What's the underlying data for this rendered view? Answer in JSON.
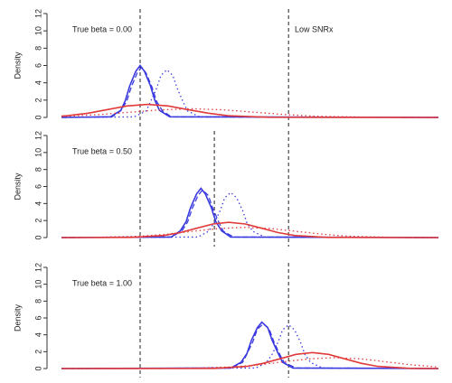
{
  "chart_data": [
    {
      "type": "line",
      "annotation": "True beta = 0.00",
      "note": "Low SNRx",
      "ylabel": "Density",
      "xlim": [
        -0.53,
        2.01
      ],
      "ylim": [
        0,
        12
      ],
      "yticks": [
        0,
        2,
        4,
        6,
        8,
        10,
        12
      ],
      "vlines": [
        0,
        1.0
      ],
      "series": [
        {
          "color": "#3a3ae0",
          "style": "solid",
          "x": [
            -0.53,
            -0.2,
            -0.13,
            -0.1,
            -0.07,
            -0.03,
            0,
            0.03,
            0.07,
            0.1,
            0.13,
            0.2,
            2.01
          ],
          "values": [
            0,
            0.07,
            0.81,
            1.95,
            3.64,
            5.3,
            6,
            5.3,
            3.64,
            1.95,
            0.81,
            0.07,
            0
          ]
        },
        {
          "color": "#3a3ae0",
          "style": "dashed",
          "x": [
            -0.53,
            -0.19,
            -0.13,
            -0.09,
            -0.06,
            -0.02,
            0.01,
            0.04,
            0.08,
            0.11,
            0.15,
            0.21,
            2.01
          ],
          "values": [
            0,
            0.06,
            0.78,
            1.88,
            3.52,
            5.12,
            5.8,
            5.12,
            3.52,
            1.88,
            0.78,
            0.06,
            0
          ]
        },
        {
          "color": "#3a3ae0",
          "style": "dotted",
          "x": [
            -0.53,
            -0.04,
            0.04,
            0.07,
            0.11,
            0.14,
            0.18,
            0.22,
            0.25,
            0.29,
            0.32,
            0.4,
            2.01
          ],
          "values": [
            0,
            0.06,
            0.74,
            1.79,
            3.34,
            4.85,
            5.5,
            4.85,
            3.34,
            1.79,
            0.74,
            0.06,
            0
          ]
        },
        {
          "color": "#e03a3a",
          "style": "solid",
          "x": [
            -0.53,
            -0.49,
            -0.35,
            -0.22,
            -0.09,
            0.05,
            0.19,
            0.32,
            0.46,
            0.59,
            0.86,
            2.01
          ],
          "values": [
            0.15,
            0.2,
            0.49,
            0.91,
            1.32,
            1.5,
            1.32,
            0.91,
            0.49,
            0.2,
            0.02,
            0
          ]
        },
        {
          "color": "#e03a3a",
          "style": "dotted",
          "x": [
            -0.53,
            -0.28,
            -0.07,
            0.14,
            0.35,
            0.56,
            0.77,
            0.98,
            1.19,
            1.61,
            2.01
          ],
          "values": [
            0.11,
            0.32,
            0.61,
            0.88,
            1,
            0.88,
            0.61,
            0.32,
            0.14,
            0.01,
            0
          ]
        }
      ]
    },
    {
      "type": "line",
      "annotation": "True beta = 0.50",
      "ylabel": "Density",
      "xlim": [
        -0.53,
        2.01
      ],
      "ylim": [
        0,
        12
      ],
      "yticks": [
        0,
        2,
        4,
        6,
        8,
        10,
        12
      ],
      "vlines": [
        0,
        0.5,
        1.0
      ],
      "series": [
        {
          "color": "#3a3ae0",
          "style": "solid",
          "x": [
            -0.53,
            0.21,
            0.27,
            0.31,
            0.34,
            0.38,
            0.41,
            0.44,
            0.48,
            0.51,
            0.55,
            0.61,
            2.01
          ],
          "values": [
            0,
            0.06,
            0.78,
            1.88,
            3.52,
            5.12,
            5.8,
            5.12,
            3.52,
            1.88,
            0.78,
            0.06,
            0
          ]
        },
        {
          "color": "#3a3ae0",
          "style": "dashed",
          "x": [
            -0.53,
            0.21,
            0.28,
            0.32,
            0.35,
            0.39,
            0.42,
            0.46,
            0.49,
            0.53,
            0.56,
            0.63,
            2.01
          ],
          "values": [
            0,
            0.06,
            0.76,
            1.82,
            3.4,
            4.94,
            5.6,
            4.94,
            3.4,
            1.82,
            0.76,
            0.06,
            0
          ]
        },
        {
          "color": "#3a3ae0",
          "style": "dotted",
          "x": [
            -0.53,
            0.39,
            0.46,
            0.5,
            0.54,
            0.57,
            0.61,
            0.65,
            0.69,
            0.72,
            0.76,
            0.84,
            2.01
          ],
          "values": [
            0,
            0.06,
            0.72,
            1.72,
            3.21,
            4.68,
            5.3,
            4.68,
            3.21,
            1.72,
            0.72,
            0.06,
            0
          ]
        },
        {
          "color": "#e03a3a",
          "style": "solid",
          "x": [
            -0.53,
            -0.06,
            0.16,
            0.27,
            0.38,
            0.49,
            0.6,
            0.71,
            0.82,
            0.93,
            1.04,
            1.26,
            2.01
          ],
          "values": [
            0,
            0.02,
            0.24,
            0.58,
            1.09,
            1.59,
            1.8,
            1.59,
            1.09,
            0.58,
            0.24,
            0.02,
            0
          ]
        },
        {
          "color": "#e03a3a",
          "style": "dotted",
          "x": [
            -0.53,
            -0.35,
            0.0,
            0.18,
            0.35,
            0.53,
            0.7,
            0.88,
            1.05,
            1.23,
            1.4,
            1.75,
            2.01
          ],
          "values": [
            0,
            0.01,
            0.16,
            0.39,
            0.73,
            1.06,
            1.2,
            1.06,
            0.73,
            0.39,
            0.16,
            0.01,
            0
          ]
        }
      ]
    },
    {
      "type": "line",
      "annotation": "True beta = 1.00",
      "ylabel": "Density",
      "xlim": [
        -0.53,
        2.01
      ],
      "ylim": [
        0,
        12
      ],
      "yticks": [
        0,
        2,
        4,
        6,
        8,
        10,
        12
      ],
      "vlines": [
        0,
        1.0
      ],
      "series": [
        {
          "color": "#3a3ae0",
          "style": "solid",
          "x": [
            -0.53,
            0.61,
            0.68,
            0.72,
            0.75,
            0.79,
            0.82,
            0.86,
            0.89,
            0.93,
            0.96,
            1.03,
            2.01
          ],
          "values": [
            0,
            0.06,
            0.74,
            1.79,
            3.34,
            4.85,
            5.5,
            4.85,
            3.34,
            1.79,
            0.74,
            0.06,
            0
          ]
        },
        {
          "color": "#3a3ae0",
          "style": "dashed",
          "x": [
            -0.53,
            0.61,
            0.69,
            0.72,
            0.76,
            0.79,
            0.83,
            0.87,
            0.9,
            0.94,
            0.97,
            1.05,
            2.01
          ],
          "values": [
            0,
            0.06,
            0.72,
            1.72,
            3.21,
            4.68,
            5.3,
            4.68,
            3.21,
            1.72,
            0.72,
            0.06,
            0
          ]
        },
        {
          "color": "#3a3ae0",
          "style": "dotted",
          "x": [
            -0.53,
            0.78,
            0.85,
            0.89,
            0.93,
            0.96,
            1.0,
            1.04,
            1.08,
            1.11,
            1.15,
            1.23,
            2.01
          ],
          "values": [
            0,
            0.06,
            0.7,
            1.69,
            3.15,
            4.59,
            5.2,
            4.59,
            3.15,
            1.69,
            0.7,
            0.06,
            0
          ]
        },
        {
          "color": "#e03a3a",
          "style": "solid",
          "x": [
            -0.53,
            0.5,
            0.72,
            0.83,
            0.94,
            1.05,
            1.16,
            1.27,
            1.38,
            1.49,
            1.6,
            1.82,
            2.01
          ],
          "values": [
            0,
            0.02,
            0.26,
            0.62,
            1.15,
            1.68,
            1.9,
            1.68,
            1.15,
            0.62,
            0.26,
            0.02,
            0
          ]
        },
        {
          "color": "#e03a3a",
          "style": "dotted",
          "x": [
            -0.53,
            0.26,
            0.61,
            0.79,
            0.96,
            1.14,
            1.31,
            1.49,
            1.66,
            1.84,
            2.01
          ],
          "values": [
            0,
            0.01,
            0.18,
            0.42,
            0.79,
            1.15,
            1.3,
            1.15,
            0.79,
            0.42,
            0.18
          ]
        }
      ]
    }
  ]
}
